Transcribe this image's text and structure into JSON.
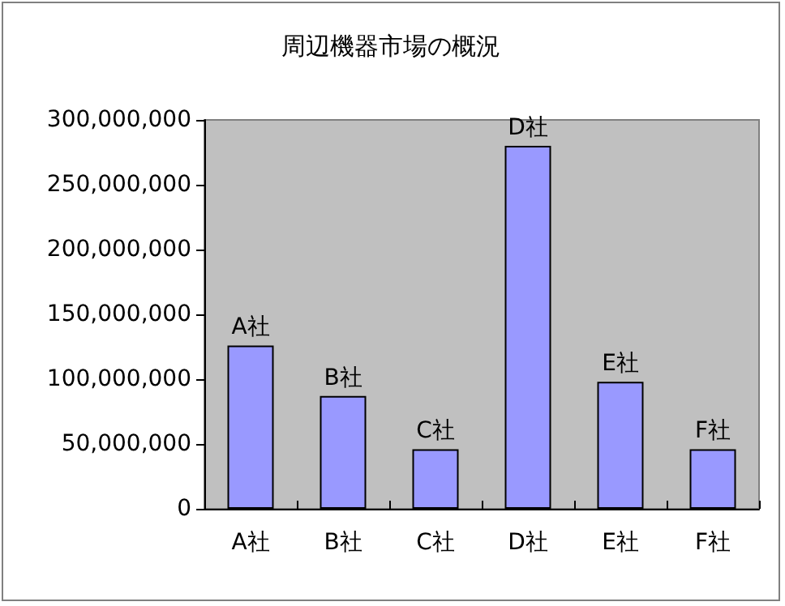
{
  "chart_data": {
    "type": "bar",
    "title": "周辺機器市場の概況",
    "categories": [
      "A社",
      "B社",
      "C社",
      "D社",
      "E社",
      "F社"
    ],
    "values": [
      126000000,
      87000000,
      46000000,
      280000000,
      98000000,
      46000000
    ],
    "color": "#9999ff",
    "ylim": [
      0,
      300000000
    ],
    "yticks": [
      {
        "value": 0,
        "label": "0"
      },
      {
        "value": 50000000,
        "label": "50,000,000"
      },
      {
        "value": 100000000,
        "label": "100,000,000"
      },
      {
        "value": 150000000,
        "label": "150,000,000"
      },
      {
        "value": 200000000,
        "label": "200,000,000"
      },
      {
        "value": 250000000,
        "label": "250,000,000"
      },
      {
        "value": 300000000,
        "label": "300,000,000"
      }
    ],
    "annotations": [
      {
        "text": "A社",
        "x": "A社",
        "y": 126000000
      },
      {
        "text": "B社",
        "x": "B社",
        "y": 87000000
      },
      {
        "text": "C社",
        "x": "C社",
        "y": 46000000
      },
      {
        "text": "D社",
        "x": "D社",
        "y": 280000000
      },
      {
        "text": "E社",
        "x": "E社",
        "y": 98000000
      },
      {
        "text": "F社",
        "x": "F社",
        "y": 46000000
      }
    ],
    "data_labels": false
  }
}
